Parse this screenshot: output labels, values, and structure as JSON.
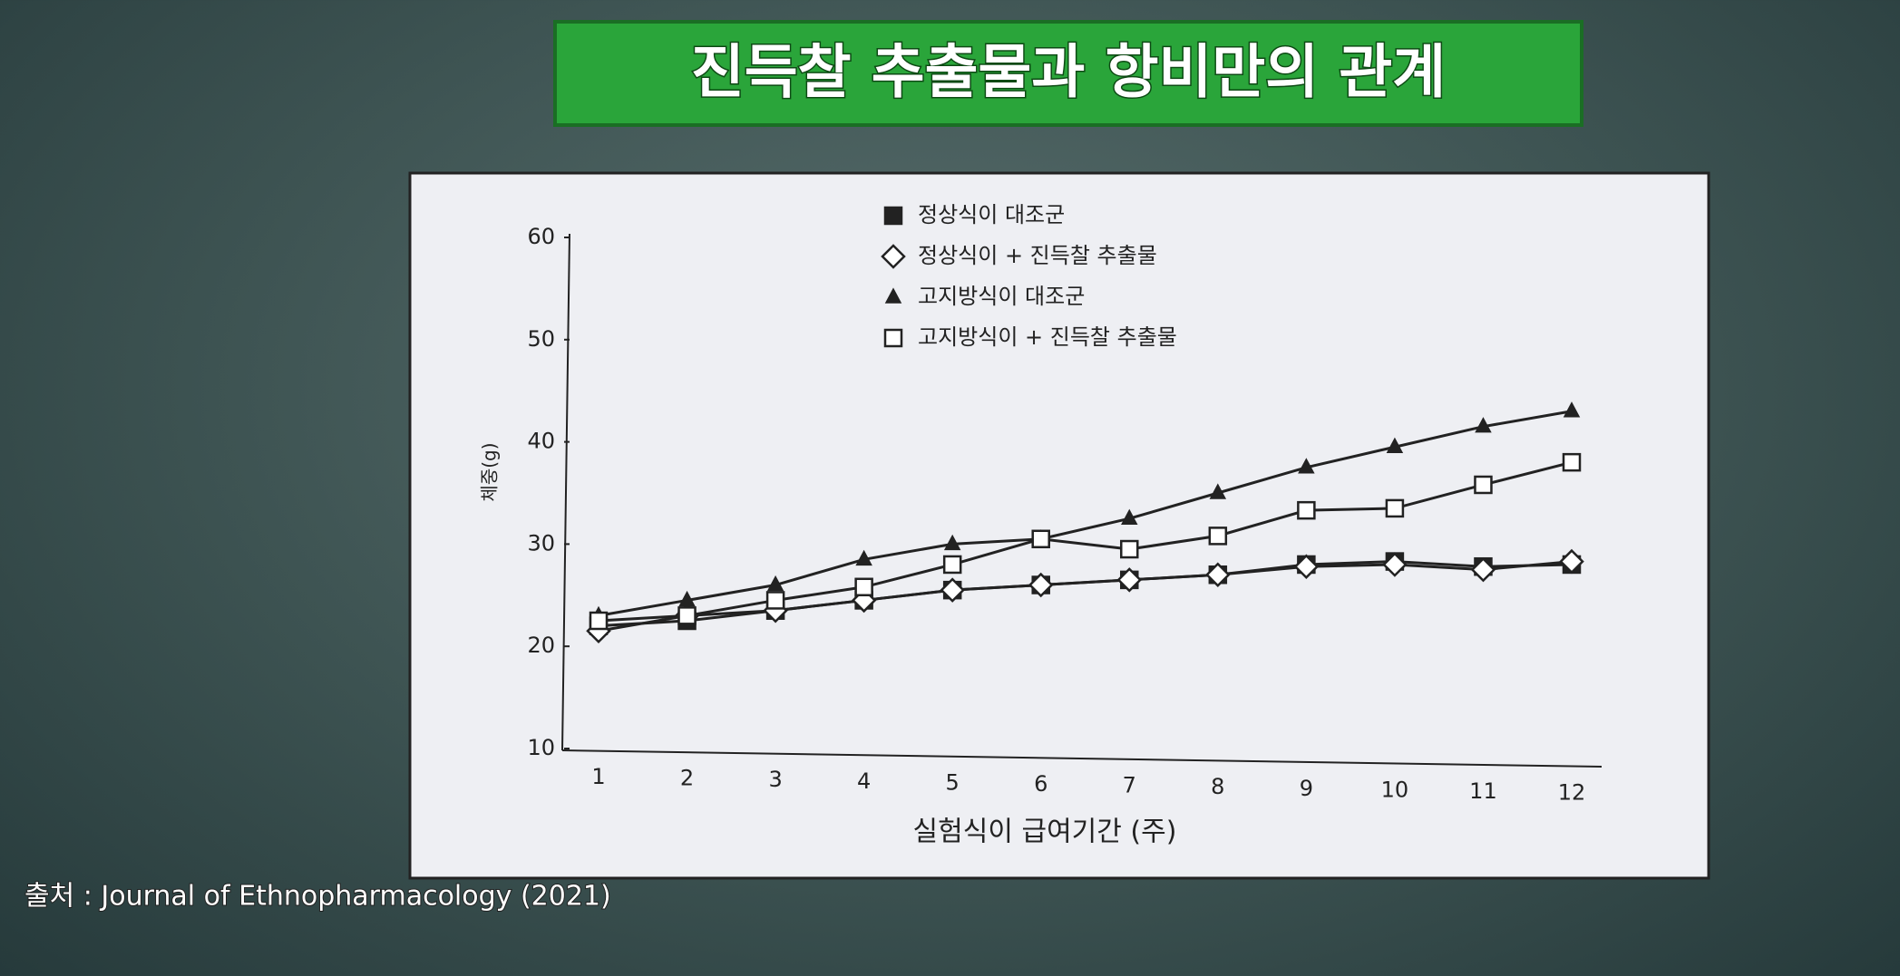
{
  "chart_data": {
    "type": "line",
    "title": "진득찰 추출물과 항비만의 관계",
    "source": "출처 : Journal of Ethnopharmacology (2021)",
    "x_label": "실험식이 급여기간 (주)",
    "y_label": "체중(g)",
    "x": [
      1,
      2,
      3,
      4,
      5,
      6,
      7,
      8,
      9,
      10,
      11,
      12
    ],
    "xlim": [
      1,
      12
    ],
    "ylim": [
      10,
      60
    ],
    "yticks": [
      10,
      20,
      30,
      40,
      50,
      60
    ],
    "series": [
      {
        "name": "정상식이 대조군",
        "color": "#222222",
        "marker": "square-filled",
        "values": [
          22,
          22.5,
          23.5,
          24.5,
          25.5,
          26,
          26.5,
          27,
          28,
          28.3,
          27.8,
          28
        ]
      },
      {
        "name": "정상식이 + 진득찰 추출물",
        "color": "#222222",
        "marker": "diamond-open",
        "values": [
          21.5,
          23,
          23.5,
          24.5,
          25.5,
          26,
          26.5,
          27,
          27.8,
          28,
          27.5,
          28.3
        ]
      },
      {
        "name": "고지방식이 대조군",
        "color": "#222222",
        "marker": "triangle-filled",
        "values": [
          23,
          24.5,
          26,
          28.5,
          30,
          30.5,
          32.5,
          35,
          37.5,
          39.5,
          41.5,
          43
        ]
      },
      {
        "name": "고지방식이 + 진득찰 추출물",
        "color": "#222222",
        "marker": "square-open",
        "values": [
          22.5,
          23,
          24.5,
          25.8,
          28,
          30.5,
          29.5,
          30.8,
          33.3,
          33.5,
          35.8,
          38
        ]
      }
    ]
  }
}
